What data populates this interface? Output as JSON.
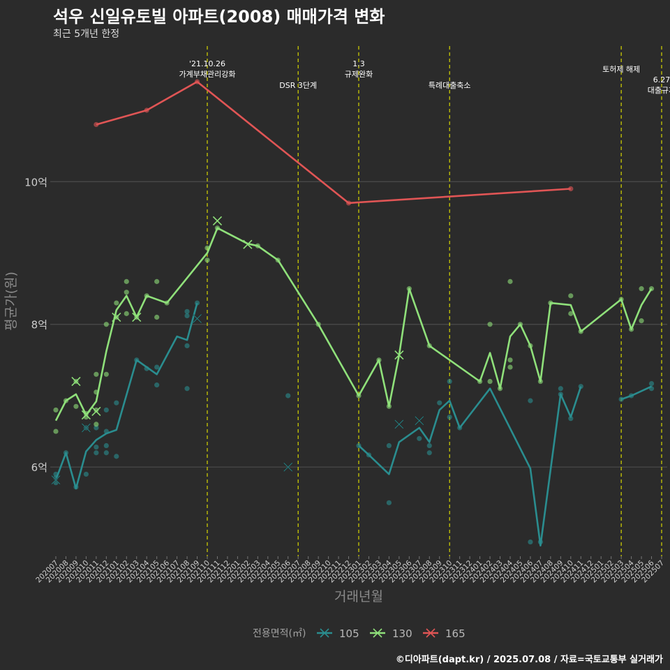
{
  "title": "석우 신일유토빌 아파트(2008) 매매가격 변화",
  "subtitle": "최근 5개년 한정",
  "caption": "©디아파트(dapt.kr) / 2025.07.08 / 자료=국토교통부 실거래가",
  "colors": {
    "background": "#2b2b2b",
    "grid": "#4d4d4d",
    "event_line": "#d7d700",
    "s105": "#2a8d8f",
    "s130": "#8fe07a",
    "s165": "#e05555"
  },
  "chart_data": {
    "type": "line",
    "xlabel": "거래년월",
    "ylabel": "평균가(원)",
    "x_categories": [
      "202007",
      "202008",
      "202009",
      "202010",
      "202011",
      "202012",
      "202101",
      "202102",
      "202103",
      "202104",
      "202105",
      "202106",
      "202107",
      "202108",
      "202109",
      "202110",
      "202111",
      "202112",
      "202201",
      "202202",
      "202203",
      "202204",
      "202205",
      "202206",
      "202207",
      "202208",
      "202209",
      "202210",
      "202211",
      "202212",
      "202301",
      "202302",
      "202303",
      "202304",
      "202305",
      "202306",
      "202307",
      "202308",
      "202309",
      "202310",
      "202311",
      "202312",
      "202401",
      "202402",
      "202403",
      "202404",
      "202405",
      "202406",
      "202407",
      "202408",
      "202409",
      "202410",
      "202411",
      "202412",
      "202501",
      "202502",
      "202503",
      "202504",
      "202505",
      "202506",
      "202507"
    ],
    "y_ticks": [
      {
        "value": 6,
        "label": "6억"
      },
      {
        "value": 8,
        "label": "8억"
      },
      {
        "value": 10,
        "label": "10억"
      }
    ],
    "ylim": [
      4.75,
      11.9
    ],
    "grid": true,
    "legend": {
      "title": "전용면적(㎡)",
      "position": "bottom"
    },
    "series": [
      {
        "name": "105",
        "color": "#2a8d8f",
        "segments": [
          [
            [
              "202007",
              5.82
            ],
            [
              "202008",
              6.2
            ],
            [
              "202009",
              5.7
            ],
            [
              "202010",
              6.22
            ],
            [
              "202011",
              6.38
            ],
            [
              "202012",
              6.47
            ],
            [
              "202101",
              6.52
            ],
            [
              "202103",
              7.5
            ],
            [
              "202105",
              7.3
            ],
            [
              "202107",
              7.83
            ],
            [
              "202108",
              7.78
            ],
            [
              "202109",
              8.3
            ]
          ],
          [
            [
              "202301",
              6.3
            ],
            [
              "202302",
              6.17
            ],
            [
              "202304",
              5.9
            ],
            [
              "202305",
              6.35
            ],
            [
              "202307",
              6.55
            ],
            [
              "202308",
              6.35
            ],
            [
              "202309",
              6.8
            ],
            [
              "202310",
              6.93
            ],
            [
              "202311",
              6.55
            ],
            [
              "202402",
              7.1
            ],
            [
              "202406",
              5.98
            ],
            [
              "202407",
              4.9
            ],
            [
              "202409",
              7.02
            ],
            [
              "202410",
              6.7
            ],
            [
              "202411",
              7.13
            ]
          ],
          [
            [
              "202503",
              6.95
            ],
            [
              "202504",
              7.0
            ],
            [
              "202506",
              7.13
            ]
          ]
        ],
        "points": [
          [
            "202007",
            5.78
          ],
          [
            "202007",
            5.85
          ],
          [
            "202007",
            5.9
          ],
          [
            "202008",
            6.2
          ],
          [
            "202009",
            5.72
          ],
          [
            "202010",
            5.9
          ],
          [
            "202010",
            6.55
          ],
          [
            "202011",
            6.2
          ],
          [
            "202011",
            6.28
          ],
          [
            "202011",
            6.55
          ],
          [
            "202012",
            6.2
          ],
          [
            "202012",
            6.3
          ],
          [
            "202012",
            6.5
          ],
          [
            "202012",
            6.8
          ],
          [
            "202101",
            6.15
          ],
          [
            "202101",
            6.9
          ],
          [
            "202103",
            7.5
          ],
          [
            "202104",
            7.38
          ],
          [
            "202105",
            7.15
          ],
          [
            "202105",
            7.4
          ],
          [
            "202108",
            7.1
          ],
          [
            "202108",
            7.7
          ],
          [
            "202108",
            8.12
          ],
          [
            "202108",
            8.18
          ],
          [
            "202109",
            8.3
          ],
          [
            "202206",
            7.0
          ],
          [
            "202301",
            6.3
          ],
          [
            "202302",
            6.17
          ],
          [
            "202304",
            5.5
          ],
          [
            "202304",
            6.3
          ],
          [
            "202307",
            6.4
          ],
          [
            "202308",
            6.2
          ],
          [
            "202308",
            6.3
          ],
          [
            "202309",
            6.9
          ],
          [
            "202310",
            7.2
          ],
          [
            "202310",
            6.7
          ],
          [
            "202311",
            6.55
          ],
          [
            "202406",
            4.95
          ],
          [
            "202406",
            6.93
          ],
          [
            "202407",
            4.95
          ],
          [
            "202409",
            7.1
          ],
          [
            "202409",
            7.02
          ],
          [
            "202410",
            6.68
          ],
          [
            "202411",
            7.13
          ],
          [
            "202503",
            6.95
          ],
          [
            "202504",
            7.0
          ],
          [
            "202506",
            7.1
          ],
          [
            "202506",
            7.17
          ]
        ],
        "crosses": [
          [
            "202007",
            5.82
          ],
          [
            "202010",
            6.55
          ],
          [
            "202109",
            8.08
          ],
          [
            "202206",
            6.0
          ],
          [
            "202305",
            6.6
          ],
          [
            "202307",
            6.65
          ]
        ]
      },
      {
        "name": "130",
        "color": "#8fe07a",
        "segments": [
          [
            [
              "202007",
              6.65
            ],
            [
              "202008",
              6.93
            ],
            [
              "202009",
              7.02
            ],
            [
              "202010",
              6.73
            ],
            [
              "202011",
              6.92
            ],
            [
              "202012",
              7.62
            ],
            [
              "202101",
              8.2
            ],
            [
              "202102",
              8.4
            ],
            [
              "202103",
              8.1
            ],
            [
              "202104",
              8.4
            ],
            [
              "202106",
              8.3
            ],
            [
              "202110",
              9.0
            ],
            [
              "202111",
              9.35
            ],
            [
              "202202",
              9.13
            ],
            [
              "202203",
              9.1
            ],
            [
              "202205",
              8.9
            ],
            [
              "202209",
              8.0
            ],
            [
              "202301",
              7.0
            ],
            [
              "202303",
              7.5
            ],
            [
              "202304",
              6.85
            ],
            [
              "202305",
              7.57
            ],
            [
              "202306",
              8.5
            ],
            [
              "202308",
              7.7
            ],
            [
              "202401",
              7.2
            ],
            [
              "202402",
              7.6
            ],
            [
              "202403",
              7.1
            ],
            [
              "202404",
              7.83
            ],
            [
              "202405",
              8.0
            ],
            [
              "202406",
              7.7
            ],
            [
              "202407",
              7.2
            ],
            [
              "202408",
              8.3
            ],
            [
              "202410",
              8.27
            ],
            [
              "202411",
              7.9
            ],
            [
              "202503",
              8.35
            ],
            [
              "202504",
              7.93
            ],
            [
              "202505",
              8.27
            ],
            [
              "202506",
              8.5
            ]
          ]
        ],
        "points": [
          [
            "202007",
            6.5
          ],
          [
            "202007",
            6.8
          ],
          [
            "202008",
            6.93
          ],
          [
            "202009",
            6.85
          ],
          [
            "202009",
            7.2
          ],
          [
            "202010",
            6.7
          ],
          [
            "202010",
            6.75
          ],
          [
            "202011",
            6.6
          ],
          [
            "202011",
            6.8
          ],
          [
            "202011",
            7.05
          ],
          [
            "202011",
            7.3
          ],
          [
            "202012",
            7.3
          ],
          [
            "202012",
            8.0
          ],
          [
            "202101",
            8.1
          ],
          [
            "202101",
            8.3
          ],
          [
            "202102",
            8.15
          ],
          [
            "202102",
            8.45
          ],
          [
            "202102",
            8.6
          ],
          [
            "202103",
            8.1
          ],
          [
            "202104",
            8.4
          ],
          [
            "202105",
            8.1
          ],
          [
            "202105",
            8.6
          ],
          [
            "202106",
            8.3
          ],
          [
            "202110",
            8.9
          ],
          [
            "202110",
            9.07
          ],
          [
            "202111",
            9.35
          ],
          [
            "202203",
            9.1
          ],
          [
            "202205",
            8.9
          ],
          [
            "202209",
            8.0
          ],
          [
            "202301",
            7.0
          ],
          [
            "202303",
            7.5
          ],
          [
            "202304",
            6.85
          ],
          [
            "202306",
            8.5
          ],
          [
            "202308",
            7.7
          ],
          [
            "202401",
            7.2
          ],
          [
            "202402",
            7.2
          ],
          [
            "202402",
            8.0
          ],
          [
            "202403",
            7.1
          ],
          [
            "202404",
            7.4
          ],
          [
            "202404",
            7.5
          ],
          [
            "202404",
            8.6
          ],
          [
            "202405",
            8.0
          ],
          [
            "202406",
            7.7
          ],
          [
            "202407",
            7.2
          ],
          [
            "202408",
            8.3
          ],
          [
            "202410",
            8.15
          ],
          [
            "202410",
            8.4
          ],
          [
            "202411",
            7.9
          ],
          [
            "202503",
            8.35
          ],
          [
            "202504",
            7.93
          ],
          [
            "202505",
            8.05
          ],
          [
            "202505",
            8.5
          ],
          [
            "202506",
            8.5
          ]
        ],
        "crosses": [
          [
            "202009",
            7.2
          ],
          [
            "202010",
            6.73
          ],
          [
            "202011",
            6.78
          ],
          [
            "202101",
            8.1
          ],
          [
            "202103",
            8.1
          ],
          [
            "202111",
            9.45
          ],
          [
            "202202",
            9.12
          ],
          [
            "202305",
            7.57
          ]
        ]
      },
      {
        "name": "165",
        "color": "#e05555",
        "segments": [
          [
            [
              "202011",
              10.8
            ],
            [
              "202104",
              11.0
            ],
            [
              "202109",
              11.4
            ],
            [
              "202212",
              9.7
            ],
            [
              "202410",
              9.9
            ]
          ]
        ],
        "points": [
          [
            "202011",
            10.8
          ],
          [
            "202104",
            11.0
          ],
          [
            "202109",
            11.4
          ],
          [
            "202212",
            9.7
          ],
          [
            "202410",
            9.9
          ]
        ],
        "crosses": []
      }
    ],
    "events": [
      {
        "x": "202110",
        "lines": [
          "'21.10.26",
          "가계부채관리강화"
        ],
        "level": 0
      },
      {
        "x": "202207",
        "lines": [
          "DSR 3단계"
        ],
        "level": 2
      },
      {
        "x": "202301",
        "lines": [
          "1.3",
          "규제완화"
        ],
        "level": 0
      },
      {
        "x": "202310",
        "lines": [
          "특례대출축소"
        ],
        "level": 2
      },
      {
        "x": "202503",
        "lines": [
          "토허제 해제"
        ],
        "level": 1
      },
      {
        "x": "202507",
        "lines": [
          "6.27",
          "대출규제"
        ],
        "level": 1.75
      }
    ]
  }
}
